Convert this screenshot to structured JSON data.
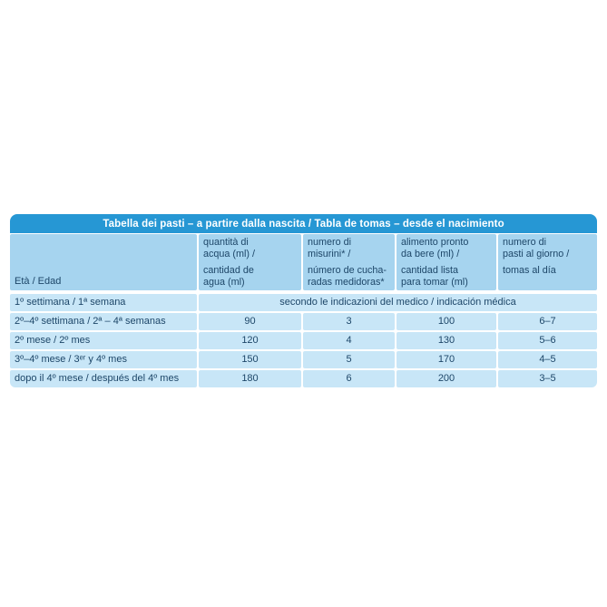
{
  "colors": {
    "title_bar_bg": "#2697d4",
    "title_text": "#ffffff",
    "header_bg": "#a6d4ef",
    "row_bg": "#c8e6f7",
    "text": "#1d4668",
    "page_bg": "#ffffff"
  },
  "table": {
    "title": "Tabella dei pasti – a partire dalla nascita / Tabla de tomas – desde el nacimiento",
    "columns": [
      {
        "label": "Età / Edad"
      },
      {
        "it": "quantità di\nacqua (ml) /",
        "es": "cantidad de\nagua (ml)"
      },
      {
        "it": "numero di\nmisurini* /",
        "es": "número de cucha-\nradas medidoras*"
      },
      {
        "it": "alimento pronto\nda bere (ml) /",
        "es": "cantidad lista\npara tomar (ml)"
      },
      {
        "it": "numero di\npasti al giorno /",
        "es": "tomas al día"
      }
    ],
    "rows": [
      {
        "age": "1º settimana / 1ª semana",
        "note": "secondo le indicazioni del medico / indicación médica"
      },
      {
        "age": "2º–4º settimana / 2ª – 4ª semanas",
        "values": [
          "90",
          "3",
          "100",
          "6–7"
        ]
      },
      {
        "age": "2º mese / 2º mes",
        "values": [
          "120",
          "4",
          "130",
          "5–6"
        ]
      },
      {
        "age": "3º–4º mese / 3ᵉʳ y 4º mes",
        "values": [
          "150",
          "5",
          "170",
          "4–5"
        ]
      },
      {
        "age": "dopo il 4º mese / después del 4º mes",
        "values": [
          "180",
          "6",
          "200",
          "3–5"
        ]
      }
    ]
  },
  "chart_data": {
    "type": "table",
    "title": "Tabella dei pasti – a partire dalla nascita / Tabla de tomas – desde el nacimiento",
    "columns": [
      "Età / Edad",
      "quantità di acqua (ml) / cantidad de agua (ml)",
      "numero di misurini* / número de cucharadas medidoras*",
      "alimento pronto da bere (ml) / cantidad lista para tomar (ml)",
      "numero di pasti al giorno / tomas al día"
    ],
    "rows": [
      [
        "1º settimana / 1ª semana",
        "secondo le indicazioni del medico / indicación médica",
        "",
        "",
        ""
      ],
      [
        "2º–4º settimana / 2ª – 4ª semanas",
        "90",
        "3",
        "100",
        "6–7"
      ],
      [
        "2º mese / 2º mes",
        "120",
        "4",
        "130",
        "5–6"
      ],
      [
        "3º–4º mese / 3ᵉʳ y 4º mes",
        "150",
        "5",
        "170",
        "4–5"
      ],
      [
        "dopo il 4º mese / después del 4º mes",
        "180",
        "6",
        "200",
        "3–5"
      ]
    ]
  }
}
